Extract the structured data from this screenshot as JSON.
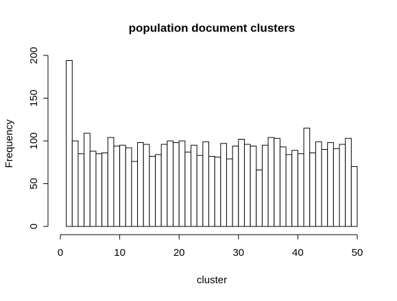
{
  "chart_data": {
    "type": "histogram",
    "title": "population document clusters",
    "x_label": "cluster",
    "y_label": "Frequency",
    "bins": [
      1,
      2,
      3,
      4,
      5,
      6,
      7,
      8,
      9,
      10,
      11,
      12,
      13,
      14,
      15,
      16,
      17,
      18,
      19,
      20,
      21,
      22,
      23,
      24,
      25,
      26,
      27,
      28,
      29,
      30,
      31,
      32,
      33,
      34,
      35,
      36,
      37,
      38,
      39,
      40,
      41,
      42,
      43,
      44,
      45,
      46,
      47,
      48,
      49,
      50
    ],
    "values": [
      194,
      100,
      85,
      109,
      88,
      85,
      86,
      104,
      94,
      95,
      92,
      76,
      98,
      96,
      82,
      84,
      96,
      100,
      98,
      100,
      87,
      95,
      83,
      99,
      82,
      81,
      97,
      79,
      94,
      102,
      96,
      94,
      66,
      95,
      104,
      103,
      93,
      84,
      89,
      85,
      115,
      86,
      99,
      90,
      98,
      91,
      96,
      103,
      70
    ],
    "color": "#ffffff",
    "edgecolor": "#000000",
    "xlim": [
      0,
      50
    ],
    "xticks": [
      0,
      10,
      20,
      30,
      40,
      50
    ],
    "ylim": [
      0,
      200
    ],
    "yticks": [
      0,
      50,
      100,
      150,
      200
    ]
  }
}
